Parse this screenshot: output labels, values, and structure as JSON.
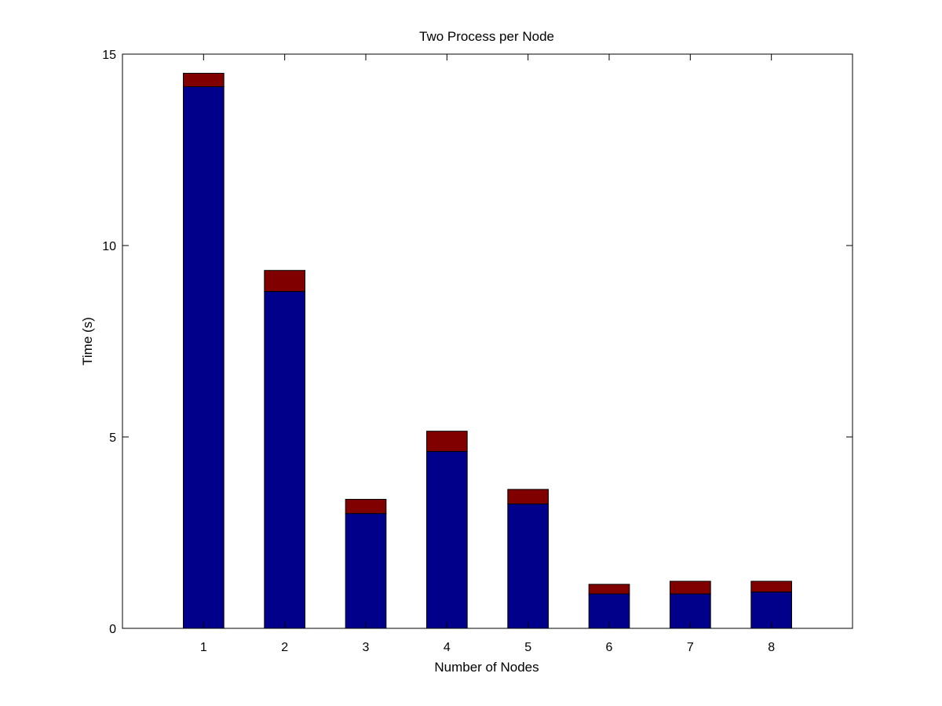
{
  "chart_data": {
    "type": "bar",
    "stacked": true,
    "title": "Two Process per Node",
    "xlabel": "Number of Nodes",
    "ylabel": "Time (s)",
    "categories": [
      "1",
      "2",
      "3",
      "4",
      "5",
      "6",
      "7",
      "8"
    ],
    "ylim": [
      0,
      15
    ],
    "yticks": [
      "0",
      "5",
      "10",
      "15"
    ],
    "grid": false,
    "series": [
      {
        "color": "#00008B",
        "values": [
          14.15,
          8.8,
          3.0,
          4.62,
          3.25,
          0.9,
          0.9,
          0.95
        ]
      },
      {
        "color": "#800000",
        "values": [
          0.35,
          0.55,
          0.37,
          0.53,
          0.38,
          0.25,
          0.33,
          0.28
        ]
      }
    ]
  }
}
